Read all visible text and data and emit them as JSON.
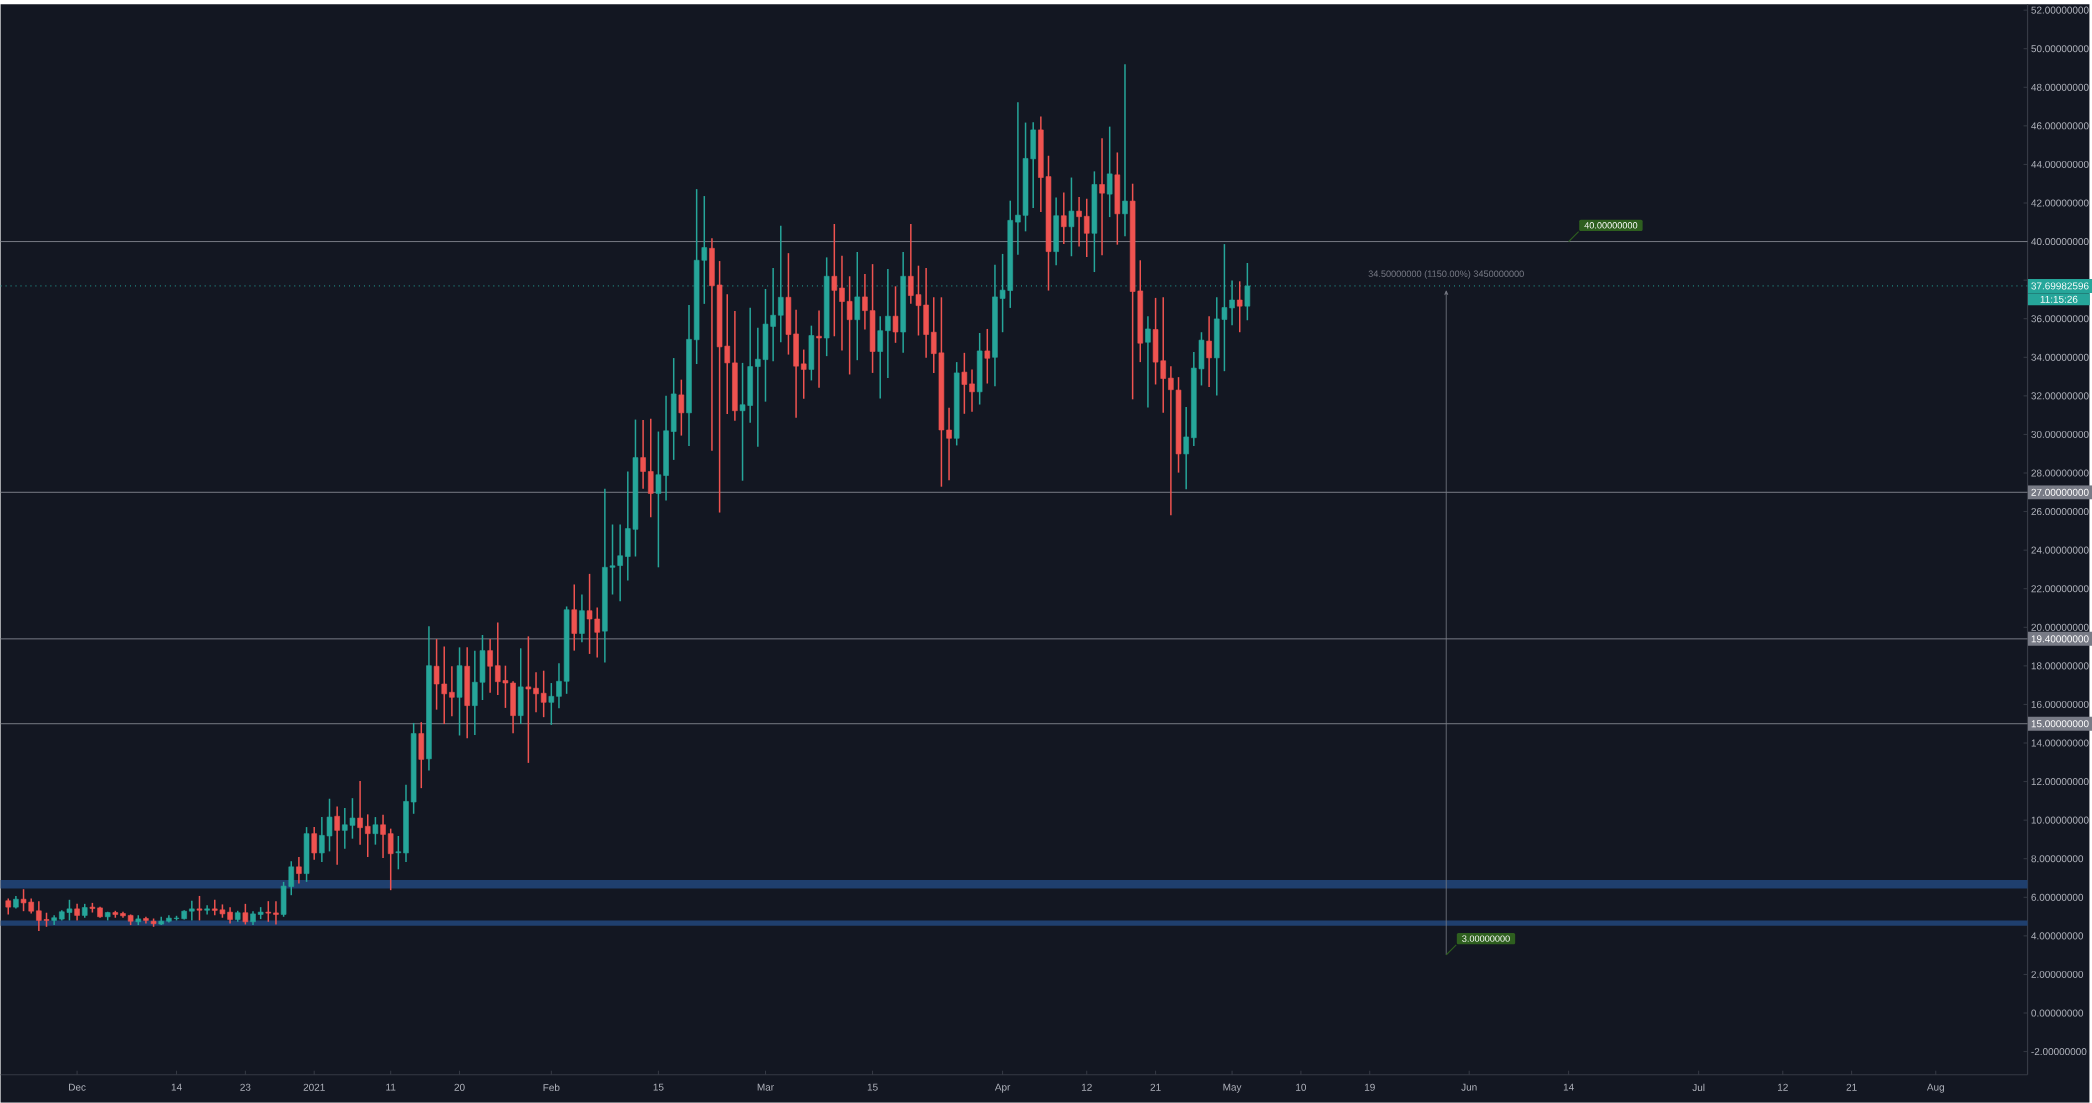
{
  "chart_data": {
    "type": "candlestick",
    "x": [
      "2020-11-22",
      "2020-11-23",
      "2020-11-24",
      "2020-11-25",
      "2020-11-26",
      "2020-11-27",
      "2020-11-28",
      "2020-11-29",
      "2020-11-30",
      "2020-12-01",
      "2020-12-02",
      "2020-12-03",
      "2020-12-04",
      "2020-12-05",
      "2020-12-06",
      "2020-12-07",
      "2020-12-08",
      "2020-12-09",
      "2020-12-10",
      "2020-12-11",
      "2020-12-12",
      "2020-12-13",
      "2020-12-14",
      "2020-12-15",
      "2020-12-16",
      "2020-12-17",
      "2020-12-18",
      "2020-12-19",
      "2020-12-20",
      "2020-12-21",
      "2020-12-22",
      "2020-12-23",
      "2020-12-24",
      "2020-12-25",
      "2020-12-26",
      "2020-12-27",
      "2020-12-28",
      "2020-12-29",
      "2020-12-30",
      "2020-12-31",
      "2021-01-01",
      "2021-01-02",
      "2021-01-03",
      "2021-01-04",
      "2021-01-05",
      "2021-01-06",
      "2021-01-07",
      "2021-01-08",
      "2021-01-09",
      "2021-01-10",
      "2021-01-11",
      "2021-01-12",
      "2021-01-13",
      "2021-01-14",
      "2021-01-15",
      "2021-01-16",
      "2021-01-17",
      "2021-01-18",
      "2021-01-19",
      "2021-01-20",
      "2021-01-21",
      "2021-01-22",
      "2021-01-23",
      "2021-01-24",
      "2021-01-25",
      "2021-01-26",
      "2021-01-27",
      "2021-01-28",
      "2021-01-29",
      "2021-01-30",
      "2021-01-31",
      "2021-02-01",
      "2021-02-02",
      "2021-02-03",
      "2021-02-04",
      "2021-02-05",
      "2021-02-06",
      "2021-02-07",
      "2021-02-08",
      "2021-02-09",
      "2021-02-10",
      "2021-02-11",
      "2021-02-12",
      "2021-02-13",
      "2021-02-14",
      "2021-02-15",
      "2021-02-16",
      "2021-02-17",
      "2021-02-18",
      "2021-02-19",
      "2021-02-20",
      "2021-02-21",
      "2021-02-22",
      "2021-02-23",
      "2021-02-24",
      "2021-02-25",
      "2021-02-26",
      "2021-02-27",
      "2021-02-28",
      "2021-03-01",
      "2021-03-02",
      "2021-03-03",
      "2021-03-04",
      "2021-03-05",
      "2021-03-06",
      "2021-03-07",
      "2021-03-08",
      "2021-03-09",
      "2021-03-10",
      "2021-03-11",
      "2021-03-12",
      "2021-03-13",
      "2021-03-14",
      "2021-03-15",
      "2021-03-16",
      "2021-03-17",
      "2021-03-18",
      "2021-03-19",
      "2021-03-20",
      "2021-03-21",
      "2021-03-22",
      "2021-03-23",
      "2021-03-24",
      "2021-03-25",
      "2021-03-26",
      "2021-03-27",
      "2021-03-28",
      "2021-03-29",
      "2021-03-30",
      "2021-03-31",
      "2021-04-01",
      "2021-04-02",
      "2021-04-03",
      "2021-04-04",
      "2021-04-05",
      "2021-04-06",
      "2021-04-07",
      "2021-04-08",
      "2021-04-09",
      "2021-04-10",
      "2021-04-11",
      "2021-04-12",
      "2021-04-13",
      "2021-04-14",
      "2021-04-15",
      "2021-04-16",
      "2021-04-17",
      "2021-04-18",
      "2021-04-19",
      "2021-04-20",
      "2021-04-21",
      "2021-04-22",
      "2021-04-23",
      "2021-04-24",
      "2021-04-25",
      "2021-04-26",
      "2021-04-27",
      "2021-04-28",
      "2021-04-29",
      "2021-04-30",
      "2021-05-01",
      "2021-05-02",
      "2021-05-03"
    ],
    "ohlc": [
      [
        5.82,
        5.94,
        5.11,
        5.49
      ],
      [
        5.49,
        6.07,
        5.42,
        5.9
      ],
      [
        5.9,
        6.42,
        5.28,
        5.71
      ],
      [
        5.75,
        5.94,
        5.16,
        5.28
      ],
      [
        5.3,
        5.8,
        4.25,
        4.8
      ],
      [
        4.85,
        5.2,
        4.47,
        4.8
      ],
      [
        4.8,
        5.07,
        4.56,
        4.94
      ],
      [
        4.87,
        5.33,
        4.8,
        5.25
      ],
      [
        5.21,
        5.87,
        4.8,
        5.4
      ],
      [
        5.4,
        5.66,
        4.8,
        5.06
      ],
      [
        5.06,
        5.66,
        4.94,
        5.47
      ],
      [
        5.49,
        5.71,
        5.21,
        5.42
      ],
      [
        5.45,
        5.51,
        4.94,
        4.99
      ],
      [
        4.99,
        5.25,
        4.8,
        5.21
      ],
      [
        5.21,
        5.3,
        4.94,
        5.11
      ],
      [
        5.16,
        5.25,
        4.94,
        5.04
      ],
      [
        5.06,
        5.11,
        4.56,
        4.76
      ],
      [
        4.73,
        5.07,
        4.56,
        4.88
      ],
      [
        4.9,
        4.99,
        4.64,
        4.8
      ],
      [
        4.76,
        4.9,
        4.47,
        4.63
      ],
      [
        4.61,
        4.99,
        4.56,
        4.76
      ],
      [
        4.76,
        5.07,
        4.69,
        4.92
      ],
      [
        4.9,
        5.04,
        4.8,
        4.92
      ],
      [
        4.89,
        5.33,
        4.85,
        5.28
      ],
      [
        5.28,
        5.82,
        4.8,
        5.4
      ],
      [
        5.4,
        6.07,
        4.8,
        5.33
      ],
      [
        5.33,
        5.59,
        5.11,
        5.4
      ],
      [
        5.4,
        5.87,
        5.07,
        5.32
      ],
      [
        5.35,
        5.63,
        4.94,
        5.14
      ],
      [
        5.23,
        5.49,
        4.64,
        4.85
      ],
      [
        4.85,
        5.3,
        4.73,
        5.2
      ],
      [
        5.2,
        5.66,
        4.59,
        4.73
      ],
      [
        4.73,
        5.28,
        4.56,
        5.14
      ],
      [
        5.11,
        5.49,
        4.87,
        5.23
      ],
      [
        5.23,
        5.8,
        4.73,
        5.18
      ],
      [
        5.19,
        5.8,
        4.59,
        5.11
      ],
      [
        5.11,
        6.8,
        4.99,
        6.58
      ],
      [
        6.56,
        7.87,
        6.11,
        7.58
      ],
      [
        7.58,
        8.09,
        6.71,
        7.23
      ],
      [
        7.23,
        9.64,
        6.8,
        9.3
      ],
      [
        9.3,
        9.64,
        7.95,
        8.3
      ],
      [
        8.3,
        10.16,
        7.83,
        9.21
      ],
      [
        9.18,
        11.11,
        8.38,
        10.16
      ],
      [
        10.2,
        10.71,
        7.69,
        9.47
      ],
      [
        9.47,
        10.63,
        8.52,
        9.76
      ],
      [
        9.73,
        11.14,
        9.04,
        10.11
      ],
      [
        10.11,
        12.03,
        8.73,
        9.61
      ],
      [
        9.68,
        10.3,
        8.09,
        9.3
      ],
      [
        9.3,
        10.16,
        8.73,
        9.76
      ],
      [
        9.76,
        10.28,
        8.04,
        9.26
      ],
      [
        9.3,
        9.56,
        6.37,
        8.26
      ],
      [
        8.31,
        9.18,
        7.45,
        8.36
      ],
      [
        8.3,
        11.83,
        7.83,
        10.97
      ],
      [
        10.94,
        15.04,
        10.33,
        14.49
      ],
      [
        14.49,
        15.08,
        11.66,
        13.15
      ],
      [
        13.18,
        20.05,
        12.58,
        18.01
      ],
      [
        17.98,
        19.39,
        15.73,
        17.06
      ],
      [
        17.06,
        19.0,
        14.99,
        16.55
      ],
      [
        16.63,
        17.98,
        15.39,
        16.37
      ],
      [
        16.37,
        18.96,
        14.39,
        18.01
      ],
      [
        17.98,
        18.96,
        14.25,
        15.94
      ],
      [
        15.94,
        18.79,
        14.42,
        17.15
      ],
      [
        17.15,
        19.6,
        16.23,
        18.79
      ],
      [
        18.79,
        19.39,
        16.6,
        17.98
      ],
      [
        18.01,
        20.25,
        16.49,
        17.18
      ],
      [
        17.24,
        18.01,
        15.82,
        17.11
      ],
      [
        17.11,
        17.2,
        14.51,
        15.42
      ],
      [
        15.42,
        18.91,
        14.99,
        16.91
      ],
      [
        16.91,
        19.53,
        12.97,
        16.8
      ],
      [
        16.84,
        17.67,
        15.6,
        16.55
      ],
      [
        16.58,
        17.75,
        15.34,
        16.11
      ],
      [
        16.11,
        17.11,
        14.94,
        16.42
      ],
      [
        16.42,
        18.13,
        15.8,
        17.2
      ],
      [
        17.2,
        21.08,
        16.55,
        20.91
      ],
      [
        20.91,
        22.22,
        18.79,
        19.68
      ],
      [
        19.68,
        21.7,
        19.22,
        20.86
      ],
      [
        20.86,
        22.77,
        18.62,
        20.43
      ],
      [
        20.43,
        21.03,
        18.44,
        19.74
      ],
      [
        19.8,
        27.19,
        18.18,
        23.11
      ],
      [
        23.11,
        25.33,
        21.7,
        23.19
      ],
      [
        23.2,
        25.33,
        21.35,
        23.71
      ],
      [
        23.67,
        28.08,
        22.43,
        25.12
      ],
      [
        25.08,
        30.77,
        23.67,
        28.8
      ],
      [
        28.8,
        30.75,
        27.19,
        28.08
      ],
      [
        28.08,
        30.81,
        25.7,
        26.94
      ],
      [
        26.94,
        30.15,
        23.11,
        27.91
      ],
      [
        27.87,
        32.01,
        26.57,
        30.19
      ],
      [
        30.15,
        33.96,
        28.68,
        32.1
      ],
      [
        32.05,
        32.84,
        29.94,
        31.12
      ],
      [
        31.12,
        36.71,
        29.4,
        34.93
      ],
      [
        34.91,
        42.72,
        33.65,
        39.03
      ],
      [
        39.03,
        42.36,
        36.77,
        39.69
      ],
      [
        39.65,
        40.17,
        29.16,
        37.71
      ],
      [
        37.75,
        38.99,
        25.95,
        34.54
      ],
      [
        34.58,
        37.27,
        31.06,
        33.71
      ],
      [
        33.71,
        36.4,
        30.71,
        31.23
      ],
      [
        31.23,
        33.71,
        27.6,
        31.54
      ],
      [
        31.5,
        36.57,
        30.6,
        33.52
      ],
      [
        33.52,
        35.53,
        29.36,
        33.9
      ],
      [
        33.88,
        37.54,
        31.7,
        35.72
      ],
      [
        35.6,
        38.63,
        33.8,
        36.18
      ],
      [
        36.18,
        40.82,
        34.78,
        37.11
      ],
      [
        37.11,
        39.4,
        34.14,
        35.18
      ],
      [
        35.21,
        36.47,
        30.86,
        33.54
      ],
      [
        33.66,
        34.4,
        31.85,
        33.37
      ],
      [
        33.37,
        35.64,
        32.8,
        35.13
      ],
      [
        35.09,
        36.42,
        32.42,
        35.0
      ],
      [
        35.0,
        39.18,
        34.06,
        38.2
      ],
      [
        38.2,
        40.91,
        35.09,
        37.47
      ],
      [
        37.59,
        39.27,
        34.35,
        36.89
      ],
      [
        36.9,
        38.2,
        33.11,
        35.95
      ],
      [
        35.95,
        39.46,
        33.85,
        37.13
      ],
      [
        37.13,
        38.32,
        35.44,
        36.42
      ],
      [
        36.42,
        38.83,
        33.19,
        34.3
      ],
      [
        34.3,
        36.13,
        31.86,
        35.38
      ],
      [
        35.38,
        38.58,
        32.93,
        36.13
      ],
      [
        36.13,
        37.68,
        34.75,
        35.31
      ],
      [
        35.31,
        39.46,
        34.23,
        38.2
      ],
      [
        38.2,
        40.91,
        36.78,
        37.2
      ],
      [
        37.25,
        38.75,
        35.13,
        36.68
      ],
      [
        36.71,
        38.63,
        33.97,
        35.18
      ],
      [
        35.3,
        37.11,
        33.19,
        34.19
      ],
      [
        34.23,
        37.11,
        27.29,
        30.23
      ],
      [
        30.23,
        31.38,
        27.62,
        29.8
      ],
      [
        29.8,
        33.75,
        29.43,
        33.19
      ],
      [
        33.23,
        34.23,
        31.07,
        32.59
      ],
      [
        32.62,
        33.37,
        31.17,
        32.21
      ],
      [
        32.21,
        35.26,
        31.55,
        34.33
      ],
      [
        34.33,
        35.47,
        32.64,
        33.95
      ],
      [
        34.0,
        38.8,
        32.5,
        37.13
      ],
      [
        37.05,
        39.36,
        35.3,
        37.48
      ],
      [
        37.46,
        42.12,
        36.56,
        41.1
      ],
      [
        41.01,
        47.22,
        39.32,
        41.37
      ],
      [
        41.36,
        46.17,
        40.53,
        44.31
      ],
      [
        44.29,
        46.19,
        41.74,
        45.79
      ],
      [
        45.79,
        46.48,
        41.53,
        43.32
      ],
      [
        43.37,
        44.45,
        37.46,
        39.48
      ],
      [
        39.48,
        42.29,
        38.77,
        41.34
      ],
      [
        41.34,
        42.55,
        39.87,
        40.77
      ],
      [
        40.77,
        43.32,
        39.24,
        41.58
      ],
      [
        41.58,
        42.31,
        39.75,
        41.29
      ],
      [
        41.31,
        42.22,
        39.2,
        40.43
      ],
      [
        40.43,
        43.64,
        38.42,
        42.96
      ],
      [
        42.96,
        45.36,
        39.29,
        42.51
      ],
      [
        42.46,
        45.96,
        41.27,
        43.51
      ],
      [
        43.46,
        44.62,
        39.84,
        41.44
      ],
      [
        41.44,
        49.19,
        40.27,
        42.1
      ],
      [
        42.1,
        43.0,
        31.82,
        37.41
      ],
      [
        37.44,
        39.03,
        33.75,
        34.73
      ],
      [
        34.78,
        36.13,
        31.39,
        35.47
      ],
      [
        35.44,
        37.08,
        32.59,
        33.75
      ],
      [
        33.82,
        37.11,
        31.12,
        32.9
      ],
      [
        32.92,
        33.54,
        25.81,
        32.32
      ],
      [
        32.3,
        32.97,
        28.02,
        28.99
      ],
      [
        28.99,
        31.42,
        27.16,
        29.87
      ],
      [
        29.83,
        34.27,
        29.4,
        33.44
      ],
      [
        33.4,
        35.3,
        32.54,
        34.89
      ],
      [
        34.84,
        36.13,
        32.46,
        33.97
      ],
      [
        33.97,
        37.11,
        32.02,
        35.99
      ],
      [
        35.96,
        39.87,
        33.28,
        36.58
      ],
      [
        36.56,
        37.98,
        35.66,
        36.97
      ],
      [
        36.97,
        37.94,
        35.3,
        36.65
      ],
      [
        36.65,
        38.89,
        35.92,
        37.7
      ]
    ],
    "colors": [
      "#ef5350",
      "#26a69a",
      "#ef5350",
      "#ef5350",
      "#ef5350",
      "#ef5350",
      "#26a69a",
      "#26a69a",
      "#26a69a",
      "#ef5350",
      "#26a69a",
      "#ef5350",
      "#ef5350",
      "#26a69a",
      "#ef5350",
      "#ef5350",
      "#ef5350",
      "#26a69a",
      "#ef5350",
      "#ef5350",
      "#26a69a",
      "#26a69a",
      "#26a69a",
      "#26a69a",
      "#26a69a",
      "#ef5350",
      "#26a69a",
      "#ef5350",
      "#ef5350",
      "#ef5350",
      "#26a69a",
      "#ef5350",
      "#26a69a",
      "#26a69a",
      "#ef5350",
      "#ef5350",
      "#26a69a",
      "#26a69a",
      "#ef5350",
      "#26a69a",
      "#ef5350",
      "#26a69a",
      "#26a69a",
      "#ef5350",
      "#26a69a",
      "#26a69a",
      "#ef5350",
      "#ef5350",
      "#26a69a",
      "#ef5350",
      "#ef5350",
      "#26a69a",
      "#26a69a",
      "#26a69a",
      "#ef5350",
      "#26a69a",
      "#ef5350",
      "#ef5350",
      "#ef5350",
      "#26a69a",
      "#ef5350",
      "#26a69a",
      "#26a69a",
      "#ef5350",
      "#ef5350",
      "#ef5350",
      "#ef5350",
      "#26a69a",
      "#ef5350",
      "#ef5350",
      "#ef5350",
      "#26a69a",
      "#26a69a",
      "#26a69a",
      "#ef5350",
      "#26a69a",
      "#ef5350",
      "#ef5350",
      "#26a69a",
      "#26a69a",
      "#26a69a",
      "#26a69a",
      "#26a69a",
      "#ef5350",
      "#ef5350",
      "#26a69a",
      "#26a69a",
      "#26a69a",
      "#ef5350",
      "#26a69a",
      "#26a69a",
      "#26a69a",
      "#ef5350",
      "#ef5350",
      "#ef5350",
      "#ef5350",
      "#26a69a",
      "#26a69a",
      "#26a69a",
      "#26a69a",
      "#26a69a",
      "#26a69a",
      "#ef5350",
      "#ef5350",
      "#ef5350",
      "#26a69a",
      "#ef5350",
      "#26a69a",
      "#ef5350",
      "#ef5350",
      "#ef5350",
      "#26a69a",
      "#ef5350",
      "#ef5350",
      "#26a69a",
      "#26a69a",
      "#ef5350",
      "#26a69a",
      "#ef5350",
      "#ef5350",
      "#ef5350",
      "#ef5350",
      "#ef5350",
      "#ef5350",
      "#26a69a",
      "#ef5350",
      "#ef5350",
      "#26a69a",
      "#ef5350",
      "#26a69a",
      "#26a69a",
      "#26a69a",
      "#26a69a",
      "#26a69a",
      "#26a69a",
      "#ef5350",
      "#ef5350",
      "#26a69a",
      "#ef5350",
      "#26a69a",
      "#ef5350",
      "#ef5350",
      "#26a69a",
      "#ef5350",
      "#26a69a",
      "#ef5350",
      "#26a69a",
      "#ef5350",
      "#ef5350",
      "#26a69a",
      "#ef5350",
      "#ef5350",
      "#ef5350",
      "#ef5350",
      "#26a69a",
      "#26a69a",
      "#26a69a",
      "#ef5350",
      "#26a69a",
      "#26a69a",
      "#26a69a",
      "#ef5350",
      "#26a69a"
    ],
    "xlim": [
      "2020-11-21",
      "2021-08-13"
    ],
    "ylim": [
      -3.2,
      52.3
    ],
    "xticks": [
      {
        "value": "2020-12-01",
        "label": "Dec"
      },
      {
        "value": "2020-12-14",
        "label": "14"
      },
      {
        "value": "2020-12-23",
        "label": "23"
      },
      {
        "value": "2021-01-01",
        "label": "2021"
      },
      {
        "value": "2021-01-11",
        "label": "11"
      },
      {
        "value": "2021-01-20",
        "label": "20"
      },
      {
        "value": "2021-02-01",
        "label": "Feb"
      },
      {
        "value": "2021-02-15",
        "label": "15"
      },
      {
        "value": "2021-03-01",
        "label": "Mar"
      },
      {
        "value": "2021-03-15",
        "label": "15"
      },
      {
        "value": "2021-04-01",
        "label": "Apr"
      },
      {
        "value": "2021-04-12",
        "label": "12"
      },
      {
        "value": "2021-04-21",
        "label": "21"
      },
      {
        "value": "2021-05-01",
        "label": "May"
      },
      {
        "value": "2021-05-10",
        "label": "10"
      },
      {
        "value": "2021-05-19",
        "label": "19"
      },
      {
        "value": "2021-06-01",
        "label": "Jun"
      },
      {
        "value": "2021-06-14",
        "label": "14"
      },
      {
        "value": "2021-07-01",
        "label": "Jul"
      },
      {
        "value": "2021-07-12",
        "label": "12"
      },
      {
        "value": "2021-07-21",
        "label": "21"
      },
      {
        "value": "2021-08-01",
        "label": "Aug"
      }
    ],
    "yticks": [
      {
        "value": -2,
        "label": "-2.00000000"
      },
      {
        "value": 0,
        "label": "0.00000000"
      },
      {
        "value": 2,
        "label": "2.00000000"
      },
      {
        "value": 4,
        "label": "4.00000000"
      },
      {
        "value": 6,
        "label": "6.00000000"
      },
      {
        "value": 8,
        "label": "8.00000000"
      },
      {
        "value": 10,
        "label": "10.00000000"
      },
      {
        "value": 12,
        "label": "12.00000000"
      },
      {
        "value": 14,
        "label": "14.00000000"
      },
      {
        "value": 16,
        "label": "16.00000000"
      },
      {
        "value": 18,
        "label": "18.00000000"
      },
      {
        "value": 20,
        "label": "20.00000000"
      },
      {
        "value": 22,
        "label": "22.00000000"
      },
      {
        "value": 24,
        "label": "24.00000000"
      },
      {
        "value": 26,
        "label": "26.00000000"
      },
      {
        "value": 28,
        "label": "28.00000000"
      },
      {
        "value": 30,
        "label": "30.00000000"
      },
      {
        "value": 32,
        "label": "32.00000000"
      },
      {
        "value": 34,
        "label": "34.00000000"
      },
      {
        "value": 36,
        "label": "36.00000000"
      },
      {
        "value": 38,
        "label": null
      },
      {
        "value": 40,
        "label": "40.00000000"
      },
      {
        "value": 42,
        "label": "42.00000000"
      },
      {
        "value": 44,
        "label": "44.00000000"
      },
      {
        "value": 46,
        "label": "46.00000000"
      },
      {
        "value": 48,
        "label": "48.00000000"
      },
      {
        "value": 50,
        "label": "50.00000000"
      },
      {
        "value": 52,
        "label": "52.00000000"
      }
    ],
    "bands": [
      {
        "axis": "y",
        "from": 6.45,
        "to": 6.9,
        "color": "#1f3f6e"
      },
      {
        "axis": "y",
        "from": 4.52,
        "to": 4.8,
        "color": "#1f3f6e"
      }
    ],
    "ref_lines": [
      {
        "axis": "y",
        "value": 37.69982596,
        "label": "37.69982596",
        "color": "#26a69a",
        "line_style": "dotted"
      },
      {
        "axis": "y",
        "value": 40,
        "color": "#787b86"
      },
      {
        "axis": "y",
        "value": 27,
        "label": "27.00000000",
        "color": "#787b86"
      },
      {
        "axis": "y",
        "value": 19.4,
        "label": "19.40000000",
        "color": "#787b86"
      },
      {
        "axis": "y",
        "value": 15,
        "label": "15.00000000",
        "color": "#787b86"
      }
    ],
    "annotations": [
      "11:15:26",
      {
        "text": "40.00000000",
        "x": "2021-06-14",
        "y": 40
      },
      {
        "text": "34.50000000 (1150.00%) 3450000000",
        "x": "2021-05-29",
        "y": 37.5
      },
      "3.00000000"
    ]
  }
}
